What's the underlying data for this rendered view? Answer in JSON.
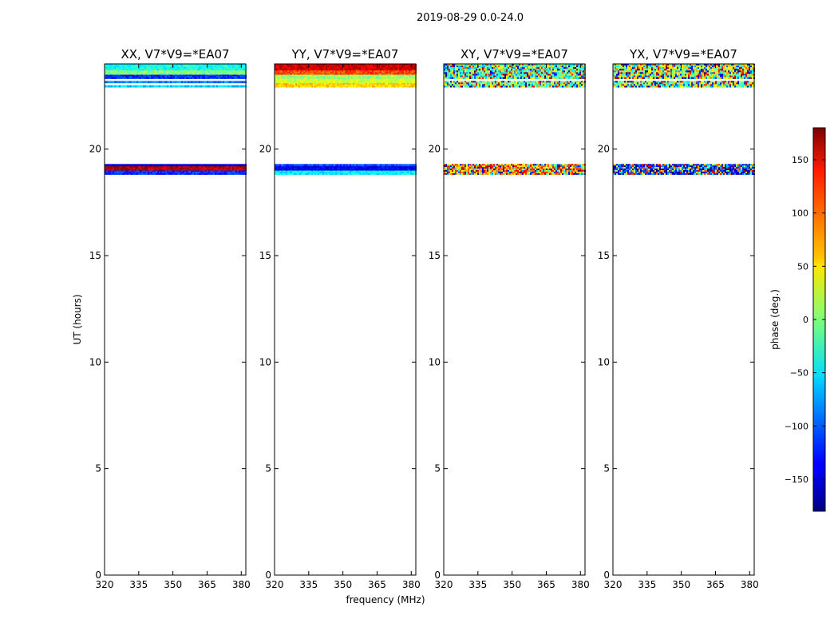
{
  "figure": {
    "suptitle": "2019-08-29 0.0-24.0",
    "xlabel": "frequency (MHz)",
    "ylabel": "UT (hours)",
    "colorbar_label": "phase (deg.)",
    "x_ticks": [
      320,
      335,
      350,
      365,
      380
    ],
    "y_ticks": [
      0,
      5,
      10,
      15,
      20
    ],
    "colorbar_ticks": [
      150,
      100,
      50,
      0,
      -50,
      -100,
      -150
    ]
  },
  "chart_data": [
    {
      "type": "heatmap",
      "title": "XX, V7*V9=*EA07",
      "xlim": [
        320,
        382
      ],
      "ylim": [
        0,
        24
      ],
      "bands": [
        {
          "y0": 18.8,
          "y1": 19.0,
          "pattern": "smooth",
          "value": -120
        },
        {
          "y0": 19.0,
          "y1": 19.2,
          "pattern": "smooth",
          "value": 160
        },
        {
          "y0": 19.2,
          "y1": 19.3,
          "pattern": "smooth",
          "value": -150
        },
        {
          "y0": 22.9,
          "y1": 23.0,
          "pattern": "smooth",
          "value": -60
        },
        {
          "y0": 23.1,
          "y1": 23.2,
          "pattern": "smooth",
          "value": -90
        },
        {
          "y0": 23.3,
          "y1": 23.5,
          "pattern": "smooth",
          "value": -120
        },
        {
          "y0": 23.5,
          "y1": 23.7,
          "pattern": "smooth",
          "value": 0
        },
        {
          "y0": 23.7,
          "y1": 24.0,
          "pattern": "smooth",
          "value": -40
        }
      ]
    },
    {
      "type": "heatmap",
      "title": "YY, V7*V9=*EA07",
      "xlim": [
        320,
        382
      ],
      "ylim": [
        0,
        24
      ],
      "bands": [
        {
          "y0": 18.8,
          "y1": 19.0,
          "pattern": "smooth",
          "value": -50
        },
        {
          "y0": 19.0,
          "y1": 19.2,
          "pattern": "smooth",
          "value": -140
        },
        {
          "y0": 19.2,
          "y1": 19.3,
          "pattern": "smooth",
          "value": -110
        },
        {
          "y0": 22.9,
          "y1": 23.1,
          "pattern": "smooth",
          "value": 60
        },
        {
          "y0": 23.1,
          "y1": 23.3,
          "pattern": "smooth",
          "value": 30
        },
        {
          "y0": 23.3,
          "y1": 23.5,
          "pattern": "smooth",
          "value": 10
        },
        {
          "y0": 23.5,
          "y1": 23.7,
          "pattern": "smooth",
          "value": 110
        },
        {
          "y0": 23.7,
          "y1": 24.0,
          "pattern": "smooth",
          "value": 150
        }
      ]
    },
    {
      "type": "heatmap",
      "title": "XY, V7*V9=*EA07",
      "xlim": [
        320,
        382
      ],
      "ylim": [
        0,
        24
      ],
      "bands": [
        {
          "y0": 18.8,
          "y1": 19.3,
          "pattern": "noisy",
          "value": 90
        },
        {
          "y0": 22.9,
          "y1": 23.2,
          "pattern": "noisy",
          "value": 0
        },
        {
          "y0": 23.3,
          "y1": 24.0,
          "pattern": "noisy",
          "value": -20
        }
      ]
    },
    {
      "type": "heatmap",
      "title": "YX, V7*V9=*EA07",
      "xlim": [
        320,
        382
      ],
      "ylim": [
        0,
        24
      ],
      "bands": [
        {
          "y0": 18.8,
          "y1": 19.3,
          "pattern": "noisy",
          "value": -130
        },
        {
          "y0": 22.9,
          "y1": 23.2,
          "pattern": "noisy",
          "value": 0
        },
        {
          "y0": 23.3,
          "y1": 24.0,
          "pattern": "noisy",
          "value": 20
        }
      ]
    }
  ],
  "colorbar": {
    "min": -180,
    "max": 180,
    "colormap": "jet"
  }
}
